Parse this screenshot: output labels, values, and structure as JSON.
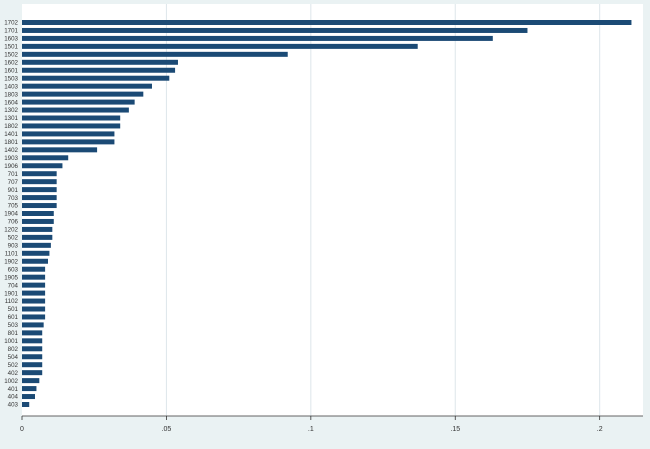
{
  "chart_data": {
    "type": "bar",
    "orientation": "horizontal",
    "title": "",
    "xlabel": "",
    "ylabel": "",
    "categories": [
      "1702",
      "1701",
      "1603",
      "1501",
      "1502",
      "1602",
      "1601",
      "1503",
      "1403",
      "1803",
      "1604",
      "1302",
      "1301",
      "1802",
      "1401",
      "1801",
      "1402",
      "1903",
      "1906",
      "701",
      "707",
      "901",
      "703",
      "705",
      "1904",
      "706",
      "1202",
      "502",
      "903",
      "1101",
      "1902",
      "603",
      "1905",
      "704",
      "1901",
      "1102",
      "501",
      "601",
      "503",
      "801",
      "1001",
      "802",
      "504",
      "502",
      "402",
      "1002",
      "401",
      "404",
      "403"
    ],
    "values": [
      0.211,
      0.175,
      0.163,
      0.137,
      0.092,
      0.054,
      0.053,
      0.051,
      0.045,
      0.042,
      0.039,
      0.037,
      0.034,
      0.034,
      0.032,
      0.032,
      0.026,
      0.016,
      0.014,
      0.012,
      0.012,
      0.012,
      0.012,
      0.012,
      0.011,
      0.011,
      0.0105,
      0.0105,
      0.01,
      0.0095,
      0.009,
      0.008,
      0.008,
      0.008,
      0.008,
      0.008,
      0.008,
      0.008,
      0.0075,
      0.007,
      0.007,
      0.007,
      0.007,
      0.007,
      0.007,
      0.006,
      0.005,
      0.0045,
      0.0025
    ],
    "xlim": [
      0,
      0.215
    ],
    "x_ticks": [
      {
        "value": 0,
        "label": "0"
      },
      {
        "value": 0.05,
        "label": ".05"
      },
      {
        "value": 0.1,
        "label": ".1"
      },
      {
        "value": 0.15,
        "label": ".15"
      },
      {
        "value": 0.2,
        "label": ".2"
      }
    ],
    "grid": true,
    "colors": {
      "bar": "#1b4a75",
      "background": "#eaf2f3",
      "plot_background": "#ffffff",
      "grid": "#dde6ea",
      "text": "#333333"
    }
  }
}
